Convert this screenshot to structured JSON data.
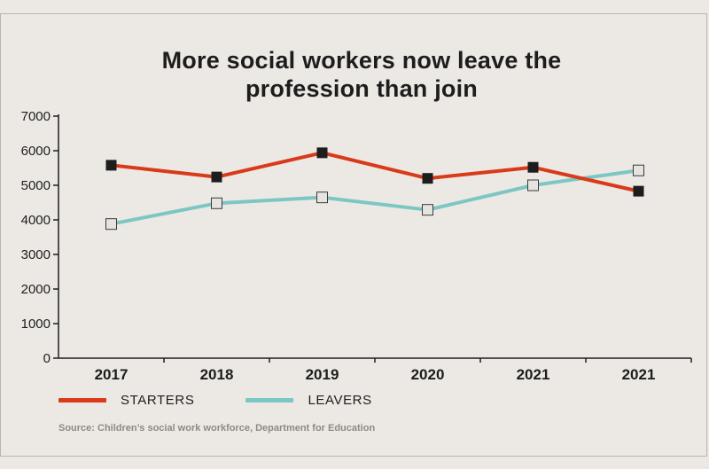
{
  "title_lines": [
    "More social workers now leave the",
    "profession than join"
  ],
  "source": "Source: Children’s social work workforce, Department for Education",
  "colors": {
    "starters": "#d93a1a",
    "leavers": "#7cc7c3",
    "axis": "#1d1d1d",
    "starters_marker": "#1d1d1d",
    "leavers_marker": "#e6e4e0"
  },
  "chart_data": {
    "type": "line",
    "title": "More social workers now leave the profession than join",
    "categories": [
      "2017",
      "2018",
      "2019",
      "2020",
      "2021",
      "2021"
    ],
    "ylim": [
      0,
      7000
    ],
    "yticks": [
      0,
      1000,
      2000,
      3000,
      4000,
      5000,
      6000,
      7000
    ],
    "grid": false,
    "legend_position": "bottom-left",
    "series": [
      {
        "name": "STARTERS",
        "values": [
          5580,
          5240,
          5940,
          5200,
          5520,
          4830
        ]
      },
      {
        "name": "LEAVERS",
        "values": [
          3880,
          4480,
          4650,
          4290,
          5000,
          5430
        ]
      }
    ]
  }
}
